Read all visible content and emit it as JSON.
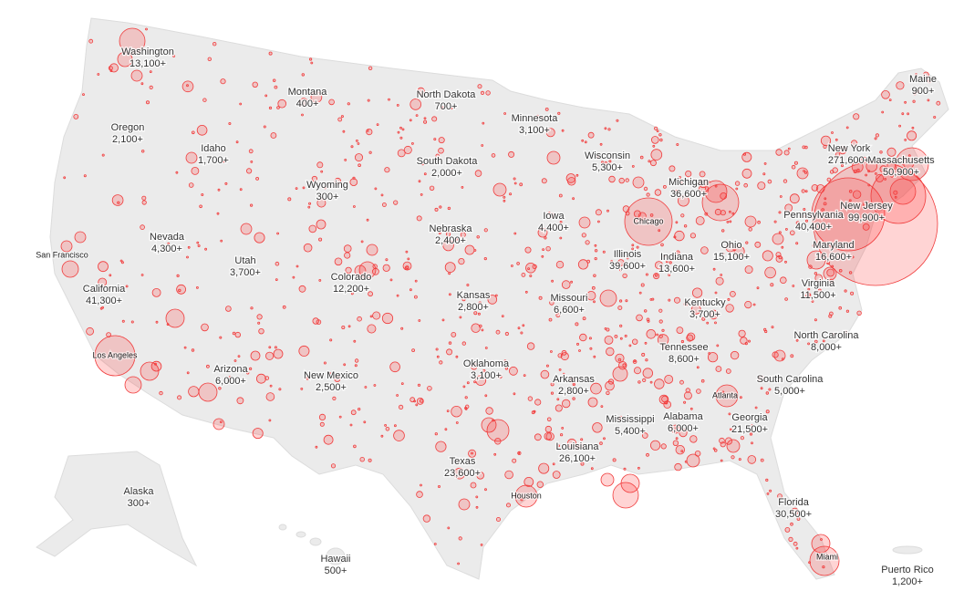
{
  "map": {
    "regions": [
      {
        "name": "Washington",
        "count": "13,100+"
      },
      {
        "name": "Montana",
        "count": "400+"
      },
      {
        "name": "North Dakota",
        "count": "700+"
      },
      {
        "name": "Minnesota",
        "count": "3,100+"
      },
      {
        "name": "Maine",
        "count": "900+"
      },
      {
        "name": "Oregon",
        "count": "2,100+"
      },
      {
        "name": "Idaho",
        "count": "1,700+"
      },
      {
        "name": "Wisconsin",
        "count": "5,300+"
      },
      {
        "name": "New York",
        "count": "271,600+"
      },
      {
        "name": "Massachusetts",
        "count": "50,900+"
      },
      {
        "name": "South Dakota",
        "count": "2,000+"
      },
      {
        "name": "Wyoming",
        "count": "300+"
      },
      {
        "name": "Michigan",
        "count": "36,600+"
      },
      {
        "name": "Iowa",
        "count": "4,400+"
      },
      {
        "name": "Pennsylvania",
        "count": "40,400+"
      },
      {
        "name": "New Jersey",
        "count": "99,900+"
      },
      {
        "name": "Nebraska",
        "count": "2,400+"
      },
      {
        "name": "Nevada",
        "count": "4,300+"
      },
      {
        "name": "Utah",
        "count": "3,700+"
      },
      {
        "name": "Illinois",
        "count": "39,600+"
      },
      {
        "name": "Indiana",
        "count": "13,600+"
      },
      {
        "name": "Ohio",
        "count": "15,100+"
      },
      {
        "name": "Maryland",
        "count": "16,600+"
      },
      {
        "name": "Colorado",
        "count": "12,200+"
      },
      {
        "name": "California",
        "count": "41,300+"
      },
      {
        "name": "Kansas",
        "count": "2,800+"
      },
      {
        "name": "Missouri",
        "count": "6,600+"
      },
      {
        "name": "Virginia",
        "count": "11,500+"
      },
      {
        "name": "Kentucky",
        "count": "3,700+"
      },
      {
        "name": "Oklahoma",
        "count": "3,100+"
      },
      {
        "name": "Tennessee",
        "count": "8,600+"
      },
      {
        "name": "North Carolina",
        "count": "8,000+"
      },
      {
        "name": "Arizona",
        "count": "6,000+"
      },
      {
        "name": "New Mexico",
        "count": "2,500+"
      },
      {
        "name": "Arkansas",
        "count": "2,800+"
      },
      {
        "name": "South Carolina",
        "count": "5,000+"
      },
      {
        "name": "Mississippi",
        "count": "5,400+"
      },
      {
        "name": "Alabama",
        "count": "6,000+"
      },
      {
        "name": "Georgia",
        "count": "21,500+"
      },
      {
        "name": "Louisiana",
        "count": "26,100+"
      },
      {
        "name": "Texas",
        "count": "23,600+"
      },
      {
        "name": "Florida",
        "count": "30,500+"
      },
      {
        "name": "Alaska",
        "count": "300+"
      },
      {
        "name": "Hawaii",
        "count": "500+"
      },
      {
        "name": "Puerto Rico",
        "count": "1,200+"
      }
    ],
    "cities": [
      "San Francisco",
      "Chicago",
      "Los Angeles",
      "Atlanta",
      "Houston",
      "Miami"
    ]
  }
}
